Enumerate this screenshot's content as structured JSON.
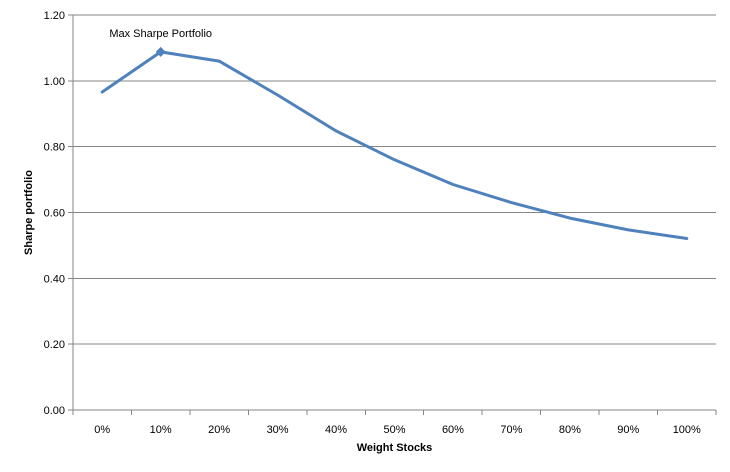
{
  "chart_data": {
    "type": "line",
    "xlabel": "Weight Stocks",
    "ylabel": "Sharpe portfolio",
    "x": [
      "0%",
      "10%",
      "20%",
      "30%",
      "40%",
      "50%",
      "60%",
      "70%",
      "80%",
      "90%",
      "100%"
    ],
    "y_ticks": [
      "0.00",
      "0.20",
      "0.40",
      "0.60",
      "0.80",
      "1.00",
      "1.20"
    ],
    "ylim": [
      0,
      1.2
    ],
    "grid": "horizontal",
    "legend": "none",
    "series": [
      {
        "values": [
          0.966,
          1.088,
          1.06,
          0.957,
          0.848,
          0.76,
          0.685,
          0.63,
          0.583,
          0.547,
          0.521
        ],
        "color": "#4f81bd"
      }
    ],
    "annotations": [
      {
        "text": "Max Sharpe Portfolio",
        "x": "10%",
        "y": 1.088
      }
    ]
  }
}
